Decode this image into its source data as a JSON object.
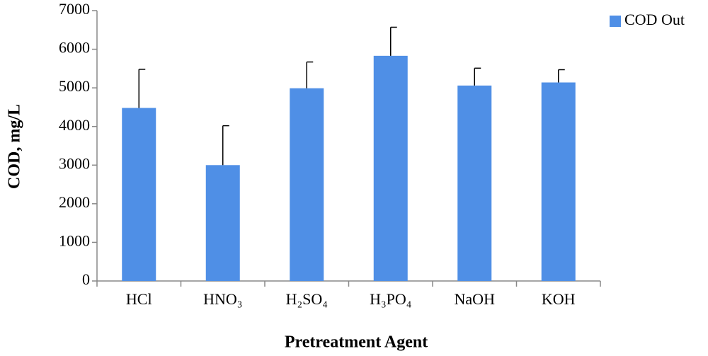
{
  "chart_data": {
    "type": "bar",
    "y_label": "COD, mg/L",
    "x_label": "Pretreatment Agent",
    "categories": [
      "HCl",
      "HNO₃",
      "H₂SO₄",
      "H₃PO₄",
      "NaOH",
      "KOH"
    ],
    "series": [
      {
        "name": "COD Out",
        "color": "#4f8fe6",
        "values": [
          4480,
          3000,
          4990,
          5830,
          5060,
          5140
        ],
        "errors": [
          1000,
          1020,
          680,
          740,
          450,
          330
        ]
      }
    ],
    "ylim": [
      0,
      7000
    ],
    "yticks": [
      0,
      1000,
      2000,
      3000,
      4000,
      5000,
      6000,
      7000
    ],
    "legend": "top-right"
  }
}
